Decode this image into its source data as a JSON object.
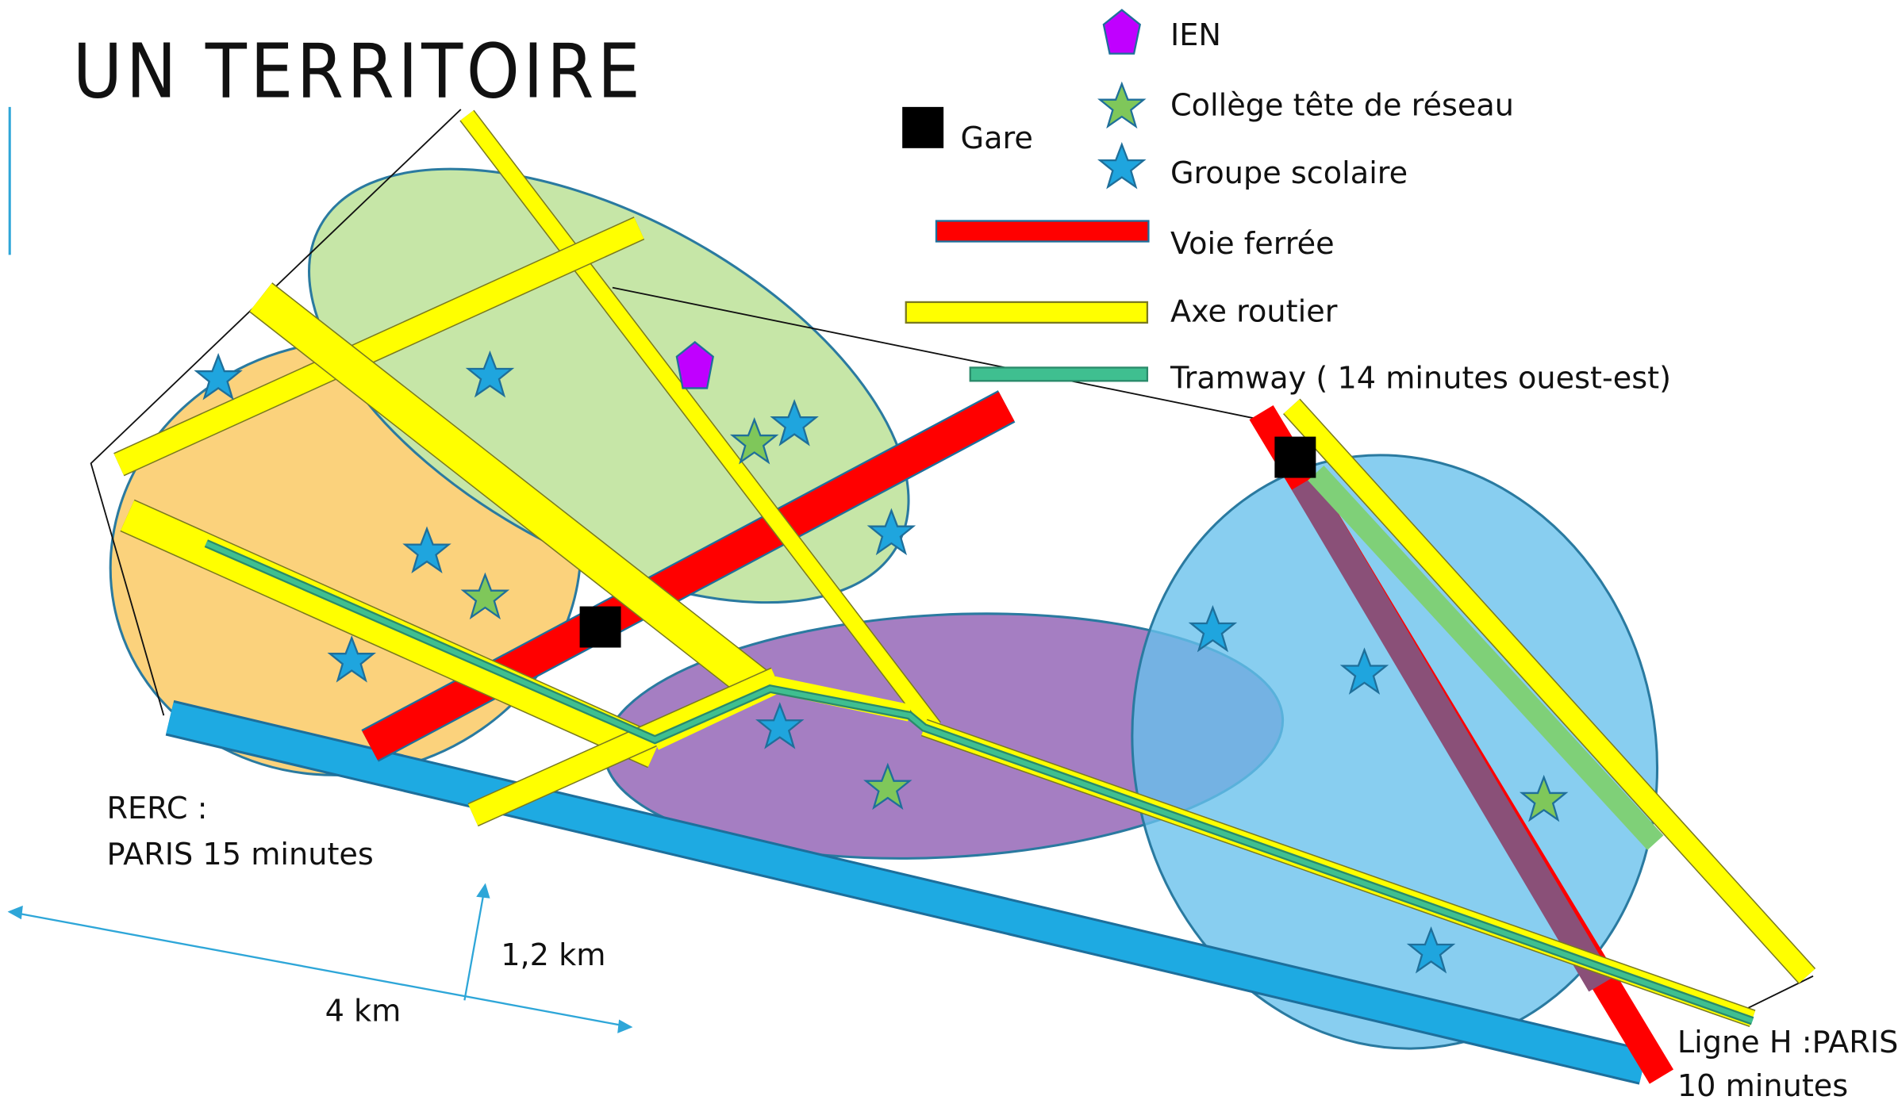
{
  "header": {
    "title": "UN TERRITOIRE"
  },
  "legend": {
    "ien": "IEN",
    "college": "Collège tête de réseau",
    "gare": "Gare",
    "groupe": "Groupe scolaire",
    "voie": "Voie ferrée",
    "axe": "Axe routier",
    "tramway": "Tramway ( 14 minutes ouest-est)"
  },
  "annotations": {
    "rerc": "RERC :",
    "rerc_time": "PARIS 15 minutes",
    "scale_height": "1,2 km",
    "scale_width": "4 km",
    "ligne_h": "Ligne H :PARIS",
    "ligne_h_time": "10 minutes"
  }
}
